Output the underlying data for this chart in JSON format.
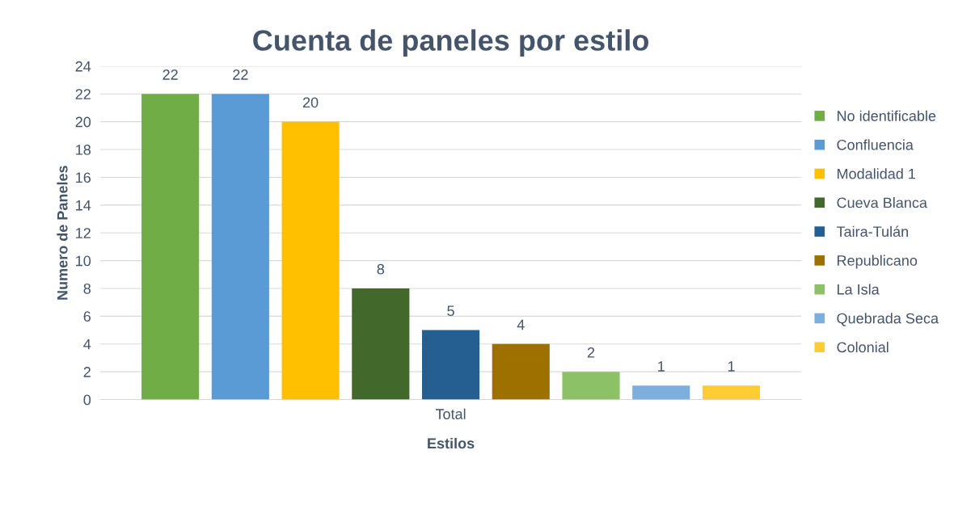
{
  "chart_data": {
    "type": "bar",
    "title": "Cuenta de paneles por estilo",
    "xlabel": "Estilos",
    "ylabel": "Numero de Paneles",
    "categories": [
      "Total"
    ],
    "series": [
      {
        "name": "No identificable",
        "color": "#70ad47",
        "values": [
          22
        ]
      },
      {
        "name": "Confluencia",
        "color": "#5b9bd5",
        "values": [
          22
        ]
      },
      {
        "name": "Modalidad 1",
        "color": "#ffc000",
        "values": [
          20
        ]
      },
      {
        "name": "Cueva Blanca",
        "color": "#43682b",
        "values": [
          8
        ]
      },
      {
        "name": "Taira-Tulán",
        "color": "#255e91",
        "values": [
          5
        ]
      },
      {
        "name": "Republicano",
        "color": "#9e7000",
        "values": [
          4
        ]
      },
      {
        "name": "La Isla",
        "color": "#8cc168",
        "values": [
          2
        ]
      },
      {
        "name": "Quebrada Seca",
        "color": "#7cafdd",
        "values": [
          1
        ]
      },
      {
        "name": "Colonial",
        "color": "#ffcd33",
        "values": [
          1
        ]
      }
    ],
    "ylim": [
      0,
      24
    ],
    "yticks": [
      0,
      2,
      4,
      6,
      8,
      10,
      12,
      14,
      16,
      18,
      20,
      22,
      24
    ],
    "grid": "y",
    "legend": "right",
    "data_labels": true
  }
}
